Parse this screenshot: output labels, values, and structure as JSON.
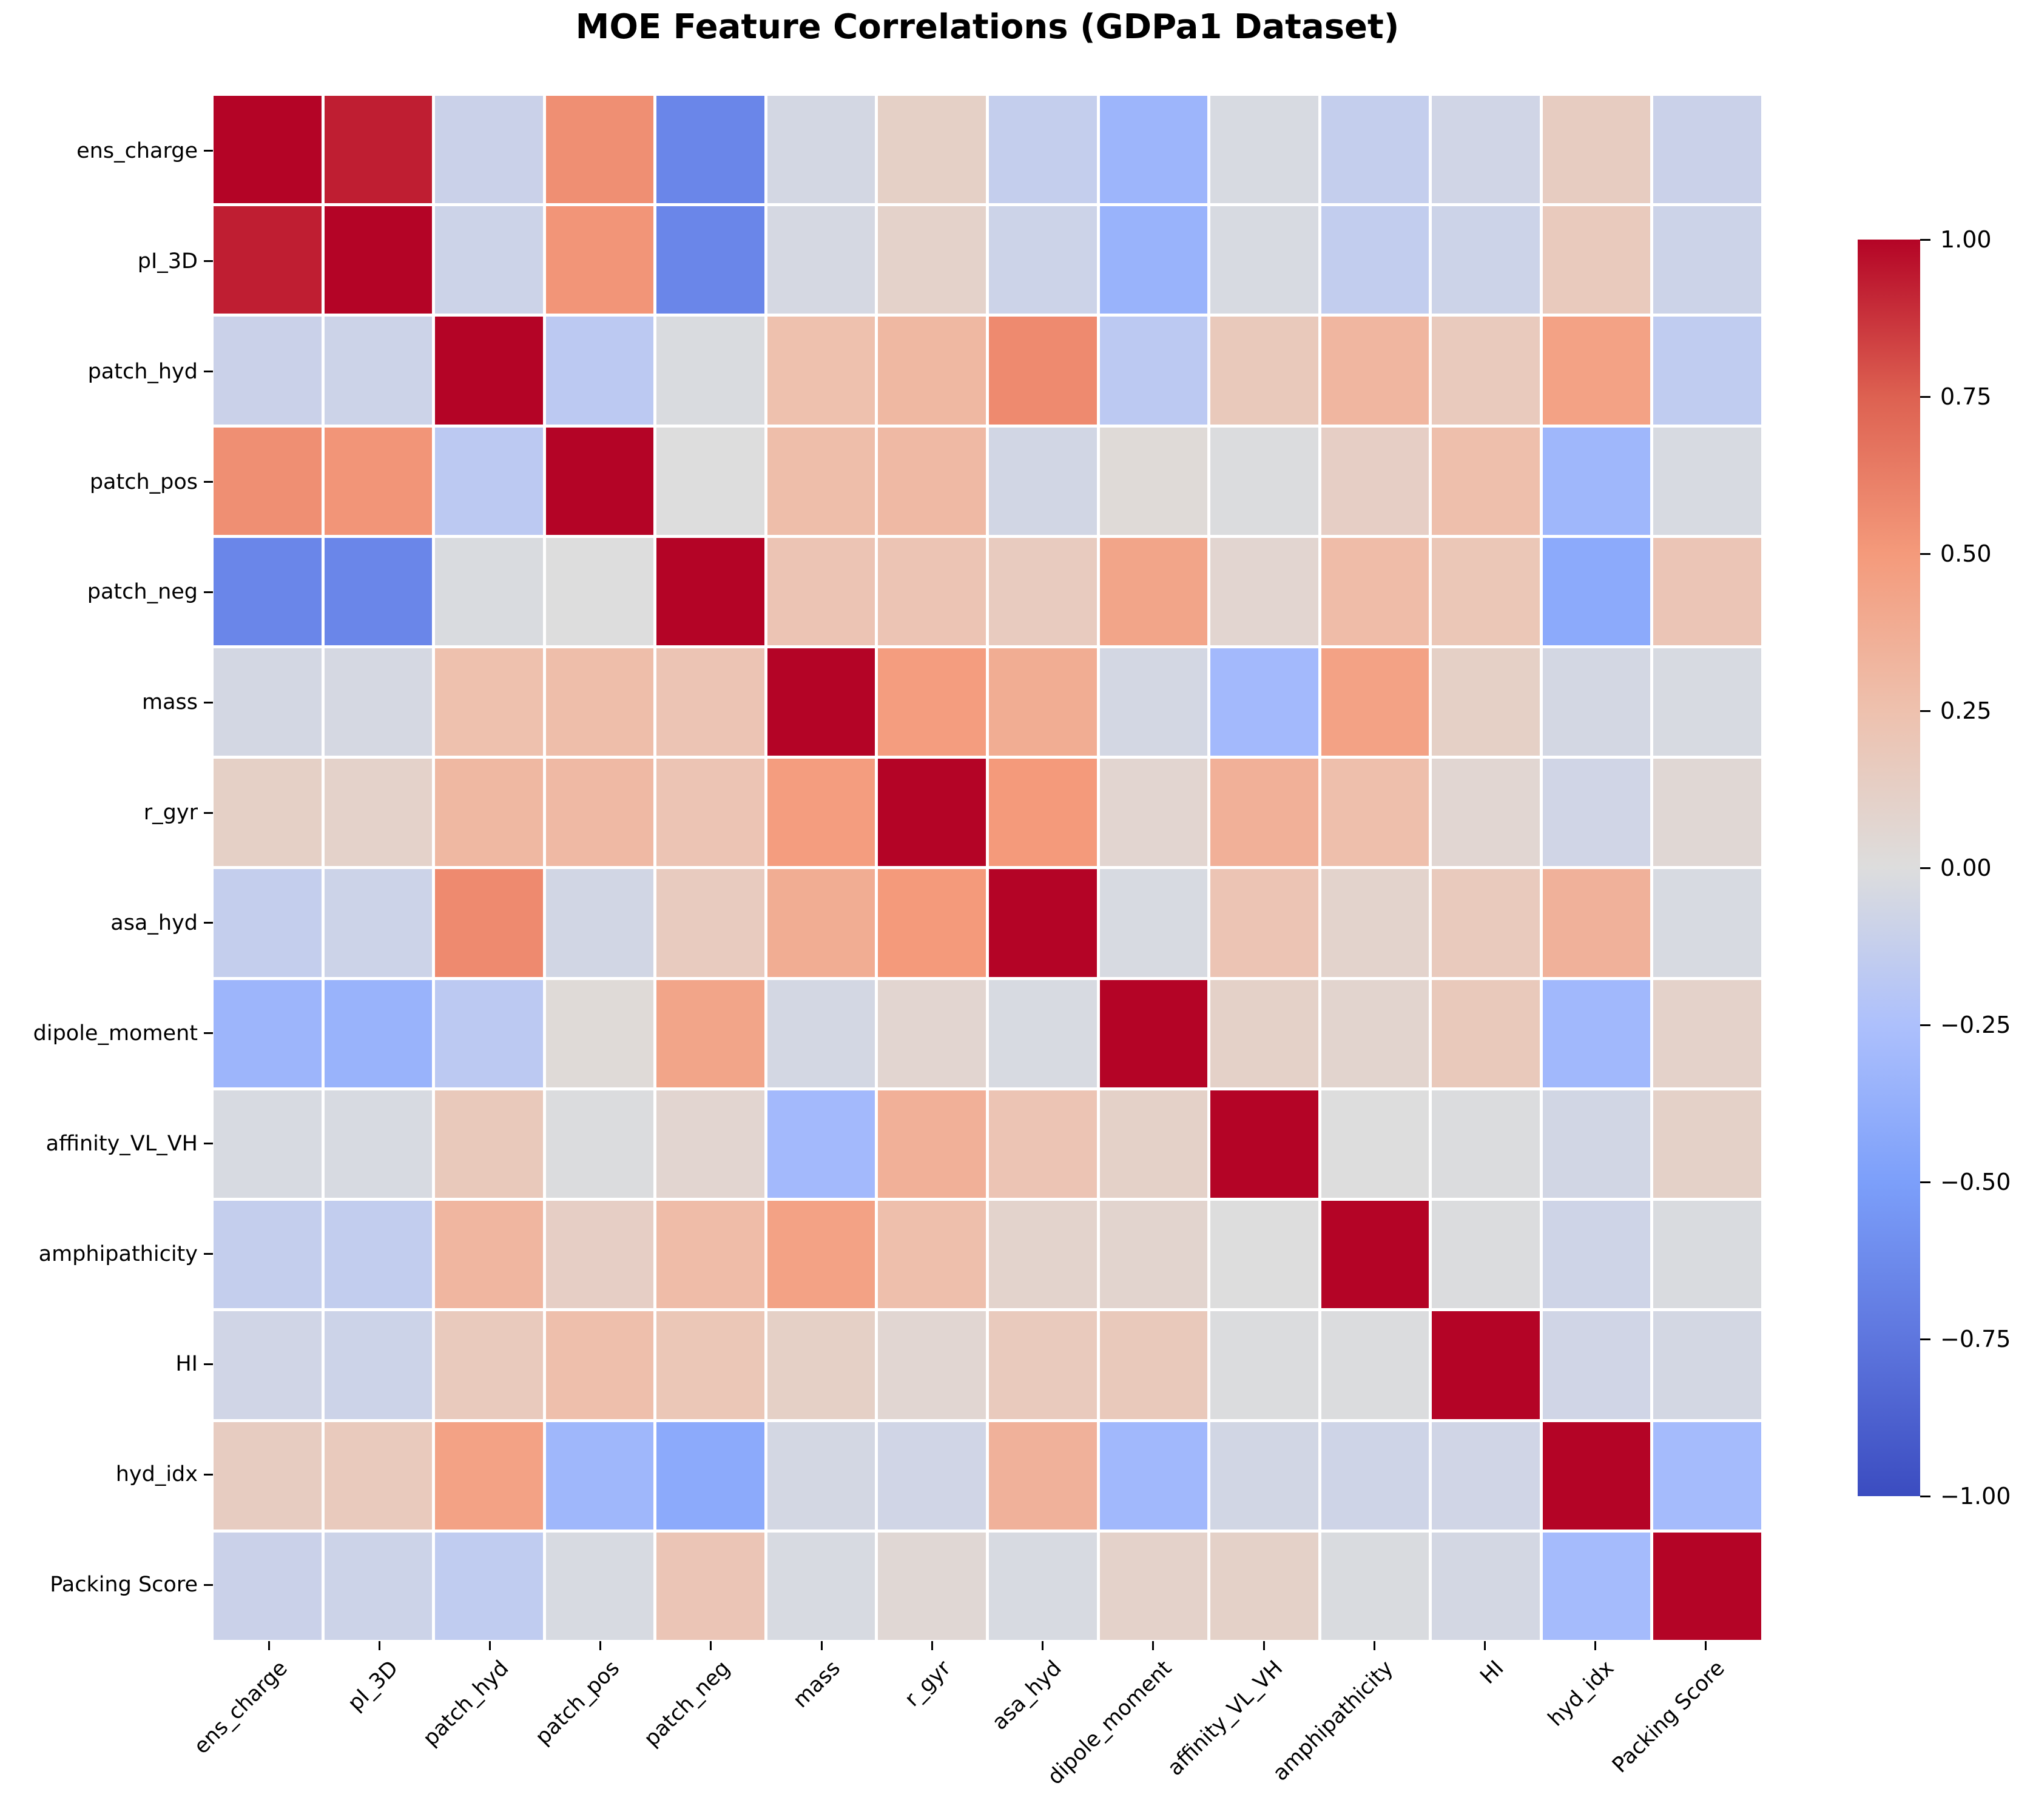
{
  "title": "MOE Feature Correlations (GDPa1 Dataset)",
  "chart_data": {
    "type": "heatmap",
    "title": "MOE Feature Correlations (GDPa1 Dataset)",
    "colormap": "coolwarm",
    "vmin": -1.0,
    "vmax": 1.0,
    "grid": false,
    "legend_position": "right-colorbar",
    "colorbar_ticks": [
      "1.00",
      "0.75",
      "0.50",
      "0.25",
      "0.00",
      "−0.25",
      "−0.50",
      "−0.75",
      "−1.00"
    ],
    "colorbar_tick_values": [
      1.0,
      0.75,
      0.5,
      0.25,
      0.0,
      -0.25,
      -0.5,
      -0.75,
      -1.0
    ],
    "colormap_anchors": [
      "#3b4cc0",
      "#5e76de",
      "#7c9ffa",
      "#adc0fc",
      "#dddddd",
      "#eec1ae",
      "#f49a7b",
      "#dd6151",
      "#b40426"
    ],
    "features": [
      "ens_charge",
      "pI_3D",
      "patch_hyd",
      "patch_pos",
      "patch_neg",
      "mass",
      "r_gyr",
      "asa_hyd",
      "dipole_moment",
      "affinity_VL_VH",
      "amphipathicity",
      "HI",
      "hyd_idx",
      "Packing Score"
    ],
    "matrix": [
      [
        1.0,
        0.93,
        -0.1,
        0.55,
        -0.65,
        -0.05,
        0.12,
        -0.13,
        -0.33,
        -0.03,
        -0.13,
        -0.07,
        0.15,
        -0.1
      ],
      [
        0.93,
        1.0,
        -0.09,
        0.52,
        -0.65,
        -0.04,
        0.1,
        -0.09,
        -0.35,
        -0.03,
        -0.14,
        -0.09,
        0.17,
        -0.09
      ],
      [
        -0.1,
        -0.09,
        1.0,
        -0.17,
        -0.02,
        0.25,
        0.31,
        0.57,
        -0.17,
        0.18,
        0.32,
        0.17,
        0.45,
        -0.15
      ],
      [
        0.55,
        0.52,
        -0.17,
        1.0,
        0.0,
        0.27,
        0.3,
        -0.06,
        0.03,
        -0.01,
        0.13,
        0.26,
        -0.32,
        -0.03
      ],
      [
        -0.65,
        -0.65,
        -0.02,
        0.0,
        1.0,
        0.22,
        0.22,
        0.16,
        0.43,
        0.07,
        0.28,
        0.2,
        -0.42,
        0.21
      ],
      [
        -0.05,
        -0.04,
        0.25,
        0.27,
        0.22,
        1.0,
        0.48,
        0.38,
        -0.05,
        -0.3,
        0.45,
        0.12,
        -0.05,
        -0.03
      ],
      [
        0.12,
        0.1,
        0.31,
        0.3,
        0.22,
        0.48,
        1.0,
        0.5,
        0.07,
        0.36,
        0.26,
        0.06,
        -0.07,
        0.05
      ],
      [
        -0.13,
        -0.09,
        0.57,
        -0.06,
        0.16,
        0.38,
        0.5,
        1.0,
        -0.03,
        0.22,
        0.09,
        0.17,
        0.35,
        -0.03
      ],
      [
        -0.33,
        -0.35,
        -0.17,
        0.03,
        0.43,
        -0.05,
        0.07,
        -0.03,
        1.0,
        0.11,
        0.08,
        0.18,
        -0.31,
        0.1
      ],
      [
        -0.03,
        -0.03,
        0.18,
        -0.01,
        0.07,
        -0.3,
        0.36,
        0.22,
        0.11,
        1.0,
        0.0,
        -0.01,
        -0.06,
        0.11
      ],
      [
        -0.13,
        -0.14,
        0.32,
        0.13,
        0.28,
        0.45,
        0.26,
        0.09,
        0.08,
        0.0,
        1.0,
        -0.01,
        -0.08,
        -0.02
      ],
      [
        -0.07,
        -0.09,
        0.17,
        0.26,
        0.2,
        0.12,
        0.06,
        0.17,
        0.18,
        -0.01,
        -0.01,
        1.0,
        -0.07,
        -0.05
      ],
      [
        0.15,
        0.17,
        0.45,
        -0.32,
        -0.42,
        -0.05,
        -0.07,
        0.35,
        -0.31,
        -0.06,
        -0.08,
        -0.07,
        1.0,
        -0.29
      ],
      [
        -0.1,
        -0.09,
        -0.15,
        -0.03,
        0.21,
        -0.03,
        0.05,
        -0.03,
        0.1,
        0.11,
        -0.02,
        -0.05,
        -0.29,
        1.0
      ]
    ]
  }
}
